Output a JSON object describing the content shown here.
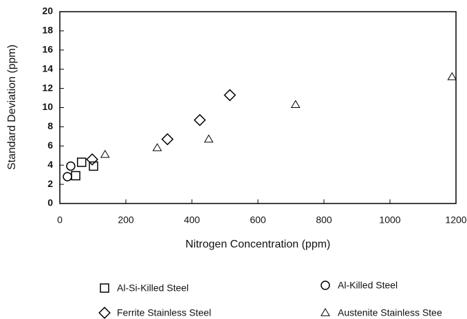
{
  "chart_data": {
    "type": "scatter",
    "xlabel": "Nitrogen Concentration (ppm)",
    "ylabel": "Standard Deviation (ppm)",
    "xlim": [
      0,
      1200
    ],
    "xticks": [
      0,
      200,
      400,
      600,
      800,
      1000,
      1200
    ],
    "ylim": [
      0,
      20
    ],
    "yticks": [
      0,
      2,
      4,
      6,
      8,
      10,
      12,
      14,
      16,
      18,
      20
    ],
    "series": [
      {
        "name": "Al-Si-Killed Steel",
        "marker": "square",
        "color": "#000000",
        "x": [
          48,
          66,
          102
        ],
        "values": [
          2.9,
          4.3,
          3.9
        ]
      },
      {
        "name": "Al-Killed Steel",
        "marker": "circle",
        "color": "#000000",
        "x": [
          23,
          33
        ],
        "values": [
          2.8,
          3.9
        ]
      },
      {
        "name": "Ferrite Stainless Steel",
        "marker": "diamond",
        "color": "#000000",
        "x": [
          98,
          326,
          424,
          515
        ],
        "values": [
          4.6,
          6.7,
          8.7,
          11.3
        ]
      },
      {
        "name": "Austenite Stainless Stee",
        "marker": "triangle",
        "color": "#000000",
        "x": [
          137,
          295,
          451,
          714,
          1188
        ],
        "values": [
          5.1,
          5.8,
          6.7,
          10.3,
          13.2
        ]
      }
    ]
  }
}
